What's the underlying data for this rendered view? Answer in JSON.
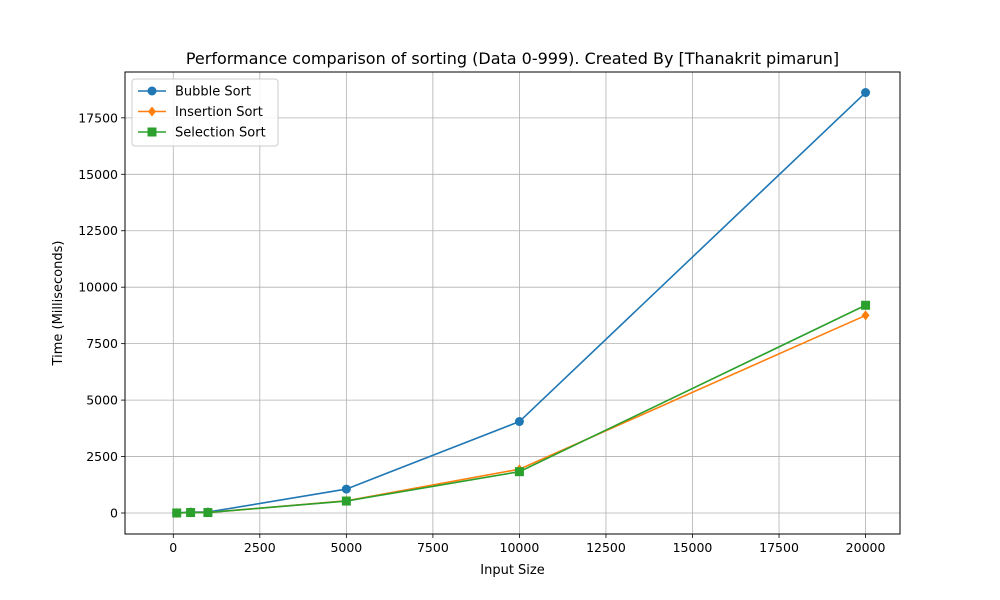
{
  "chart_data": {
    "type": "line",
    "title": "Performance comparison of sorting (Data 0-999). Created By [Thanakrit pimarun]",
    "xlabel": "Input Size",
    "ylabel": "Time (Milliseconds)",
    "x": [
      100,
      500,
      1000,
      5000,
      10000,
      20000
    ],
    "xlim": [
      -1395,
      20995
    ],
    "ylim": [
      -930,
      19530
    ],
    "xticks": [
      0,
      2500,
      5000,
      7500,
      10000,
      12500,
      15000,
      17500,
      20000
    ],
    "yticks": [
      0,
      2500,
      5000,
      7500,
      10000,
      12500,
      15000,
      17500
    ],
    "grid": true,
    "legend_position": "top-left",
    "series": [
      {
        "name": "Bubble Sort",
        "color": "#1f77b4",
        "marker": "circle",
        "values": [
          2,
          40,
          40,
          1060,
          4050,
          18620
        ]
      },
      {
        "name": "Insertion Sort",
        "color": "#ff7f0e",
        "marker": "diamond",
        "values": [
          1,
          20,
          20,
          540,
          1940,
          8750
        ]
      },
      {
        "name": "Selection Sort",
        "color": "#2ca02c",
        "marker": "square",
        "values": [
          1,
          20,
          20,
          530,
          1830,
          9200
        ]
      }
    ]
  }
}
